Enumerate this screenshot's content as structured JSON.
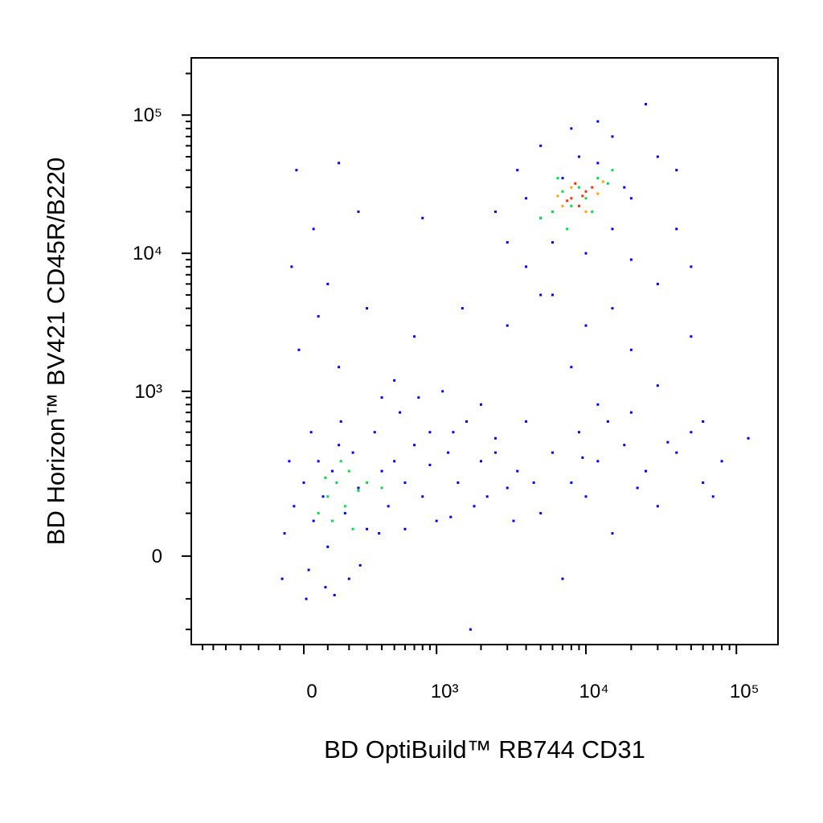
{
  "chart_data": {
    "type": "scatter",
    "xlabel": "BD OptiBuild™ RB744 CD31",
    "ylabel": "BD Horizon™ BV421 CD45R/B220",
    "xscale": "arcsinh",
    "xcofactor": 267,
    "yscale": "arcsinh",
    "ycofactor": 129,
    "xlim": [
      -723,
      189000
    ],
    "ylim": [
      -267,
      259500
    ],
    "xticks": [
      0,
      {
        "value": 1000,
        "label": "10³"
      },
      {
        "value": 10000,
        "label": "10⁴"
      },
      {
        "value": 100000,
        "label": "10⁵"
      }
    ],
    "yticks": [
      0,
      {
        "value": 1000,
        "label": "10³"
      },
      {
        "value": 10000,
        "label": "10⁴"
      },
      {
        "value": 100000,
        "label": "10⁵"
      }
    ],
    "xminorticks": [
      -600,
      -500,
      -400,
      -300,
      -200,
      -100,
      100,
      200,
      300,
      400,
      500,
      600,
      700,
      800,
      900,
      2000,
      3000,
      4000,
      5000,
      6000,
      7000,
      8000,
      9000,
      20000,
      30000,
      40000,
      50000,
      60000,
      70000,
      80000,
      90000
    ],
    "yminorticks": [
      -200,
      -100,
      100,
      200,
      300,
      400,
      500,
      600,
      700,
      800,
      900,
      2000,
      3000,
      4000,
      5000,
      6000,
      7000,
      8000,
      9000,
      20000,
      30000,
      40000,
      50000,
      60000,
      70000,
      80000,
      90000,
      200000
    ],
    "series": [
      {
        "color": "#0000ff",
        "x": [
          -80,
          -40,
          0,
          20,
          40,
          60,
          80,
          100,
          120,
          150,
          180,
          200,
          220,
          250,
          300,
          350,
          400,
          450,
          500,
          600,
          700,
          800,
          900,
          1000,
          1200,
          1400,
          1600,
          1800,
          2000,
          2500,
          3000,
          3500,
          4000,
          5000,
          6000,
          7000,
          8000,
          9000,
          10000,
          12000,
          15000,
          18000,
          20000,
          25000,
          30000,
          40000,
          50000,
          60000,
          80000,
          120000,
          -60,
          30,
          90,
          160,
          260,
          380,
          550,
          750,
          1100,
          1300,
          150,
          -20,
          60,
          -50,
          40,
          100,
          300,
          700,
          1500,
          3000,
          500,
          2000,
          12000,
          30000,
          50000,
          20000,
          8000,
          5000,
          15000,
          30000,
          50000,
          40000,
          20000,
          3000,
          4000,
          6000,
          10000,
          2500,
          3500,
          5000,
          8000,
          12000,
          15000,
          25000,
          30000,
          40000,
          4000,
          6000,
          10000,
          15000,
          20000,
          7000,
          12000,
          18000,
          5000,
          9000,
          -30,
          150,
          250,
          800,
          2500,
          4500,
          9500,
          22000,
          35000,
          70000,
          -90,
          10,
          130,
          1700,
          400,
          600,
          900,
          1250,
          2200,
          3300,
          14000,
          60000
        ],
        "values": [
          50,
          120,
          200,
          -30,
          80,
          300,
          150,
          20,
          250,
          400,
          100,
          -50,
          350,
          180,
          60,
          500,
          250,
          120,
          300,
          200,
          400,
          150,
          280,
          80,
          350,
          200,
          600,
          120,
          300,
          450,
          180,
          250,
          600,
          100,
          350,
          -50,
          200,
          500,
          150,
          300,
          50,
          400,
          700,
          250,
          120,
          350,
          500,
          200,
          300,
          450,
          300,
          500,
          -70,
          600,
          -20,
          50,
          700,
          900,
          1000,
          500,
          1500,
          2000,
          3500,
          8000,
          15000,
          6000,
          4000,
          2500,
          4000,
          3000,
          1200,
          800,
          800,
          1100,
          2500,
          2000,
          1500,
          5000,
          4000,
          6000,
          8000,
          15000,
          25000,
          12000,
          8000,
          5000,
          3000,
          20000,
          40000,
          60000,
          80000,
          90000,
          70000,
          120000,
          50000,
          40000,
          25000,
          12000,
          10000,
          15000,
          9000,
          35000,
          45000,
          30000,
          18000,
          50000,
          40000,
          45000,
          20000,
          18000,
          350,
          200,
          320,
          180,
          420,
          150,
          -50,
          -100,
          -90,
          -200,
          900,
          60,
          500,
          90,
          150,
          80,
          600,
          600
        ]
      },
      {
        "color": "#00e040",
        "x": [
          100,
          140,
          180,
          200,
          120,
          250,
          160,
          90,
          220,
          300,
          400,
          60,
          6000,
          7000,
          8000,
          9000,
          10000,
          12000,
          5000,
          11000,
          14000,
          7500,
          15000,
          6500
        ],
        "values": [
          150,
          200,
          120,
          250,
          80,
          170,
          300,
          220,
          60,
          200,
          180,
          100,
          20000,
          28000,
          22000,
          30000,
          25000,
          35000,
          18000,
          20000,
          32000,
          15000,
          40000,
          35000
        ]
      },
      {
        "color": "#ffa000",
        "x": [
          7000,
          12000,
          10000,
          8000,
          13000,
          6500
        ],
        "values": [
          22000,
          27000,
          20000,
          30000,
          33000,
          26000
        ]
      },
      {
        "color": "#ff2a00",
        "x": [
          8000,
          9000,
          10000,
          11000,
          8500,
          9500,
          7500
        ],
        "values": [
          25000,
          22000,
          28000,
          30000,
          32000,
          26000,
          24000
        ]
      }
    ]
  }
}
